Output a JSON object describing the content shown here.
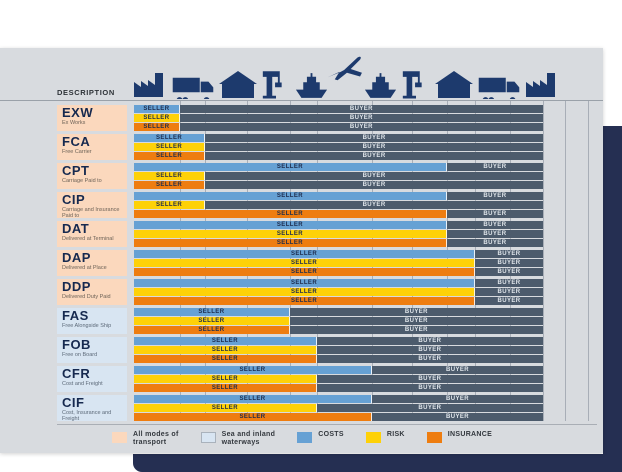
{
  "labels": {
    "seller": "SELLER",
    "buyer": "BUYER"
  },
  "header": {
    "description_label": "DESCRIPTION",
    "icons": [
      "factory",
      "truck",
      "warehouse",
      "crane",
      "ship",
      "airplane",
      "ship",
      "crane",
      "warehouse",
      "truck",
      "factory"
    ]
  },
  "rows": [
    {
      "code": "EXW",
      "name": "Ex Works",
      "mode": "all",
      "bars": {
        "costs": 0.112,
        "risk": 0.112,
        "insurance": 0.112
      }
    },
    {
      "code": "FCA",
      "name": "Free Carrier",
      "mode": "all",
      "bars": {
        "costs": 0.174,
        "risk": 0.174,
        "insurance": 0.174
      }
    },
    {
      "code": "CPT",
      "name": "Carriage Paid to",
      "mode": "all",
      "bars": {
        "costs": 0.765,
        "risk": 0.174,
        "insurance": 0.174
      }
    },
    {
      "code": "CIP",
      "name": "Carriage and Insurance Paid to",
      "mode": "all",
      "bars": {
        "costs": 0.765,
        "risk": 0.174,
        "insurance": 0.765
      }
    },
    {
      "code": "DAT",
      "name": "Delivered at Terminal",
      "mode": "all",
      "bars": {
        "costs": 0.765,
        "risk": 0.765,
        "insurance": 0.765
      }
    },
    {
      "code": "DAP",
      "name": "Delivered at Place",
      "mode": "all",
      "bars": {
        "costs": 0.834,
        "risk": 0.834,
        "insurance": 0.834
      }
    },
    {
      "code": "DDP",
      "name": "Delivered Duty Paid",
      "mode": "all",
      "bars": {
        "costs": 0.834,
        "risk": 0.834,
        "insurance": 0.834
      }
    },
    {
      "code": "FAS",
      "name": "Free Alongside Ship",
      "mode": "sea",
      "bars": {
        "costs": 0.381,
        "risk": 0.381,
        "insurance": 0.381
      }
    },
    {
      "code": "FOB",
      "name": "Free on Board",
      "mode": "sea",
      "bars": {
        "costs": 0.447,
        "risk": 0.447,
        "insurance": 0.447
      }
    },
    {
      "code": "CFR",
      "name": "Cost and Freight",
      "mode": "sea",
      "bars": {
        "costs": 0.582,
        "risk": 0.447,
        "insurance": 0.447
      }
    },
    {
      "code": "CIF",
      "name": "Cost, Insurance and Freight",
      "mode": "sea",
      "bars": {
        "costs": 0.582,
        "risk": 0.447,
        "insurance": 0.582
      }
    }
  ],
  "legend": [
    {
      "swatch": "all_modes",
      "label": "All modes of\ntransport"
    },
    {
      "swatch": "sea",
      "label": "Sea and inland\nwaterways"
    },
    {
      "swatch": "costs",
      "label": "COSTS"
    },
    {
      "swatch": "risk",
      "label": "RISK"
    },
    {
      "swatch": "insurance",
      "label": "INSURANCE"
    }
  ],
  "colors": {
    "costs": "#66a1d4",
    "risk": "#fed108",
    "insurance": "#ee7d10",
    "buyer": "#4c5b6c",
    "all_modes": "#fbd8bd",
    "sea": "#d8e5f2",
    "panel": "#d8dbdf",
    "navy": "#252f52",
    "navy_icon": "#1d3a6d"
  }
}
